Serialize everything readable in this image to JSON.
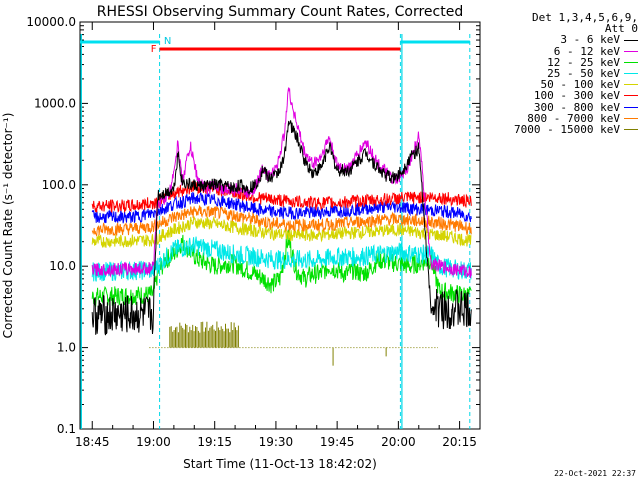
{
  "chart_data": {
    "type": "line",
    "title": "RHESSI Observing Summary Count Rates, Corrected",
    "xlabel": "Start Time (11-Oct-13 18:42:02)",
    "ylabel": "Corrected Count Rate (s⁻¹ detector⁻¹)",
    "yscale": "log",
    "ylim": [
      0.1,
      10000
    ],
    "xlim_minutes": [
      -3,
      95
    ],
    "x_ticks": [
      "18:45",
      "19:00",
      "19:15",
      "19:30",
      "19:45",
      "20:00",
      "20:15"
    ],
    "y_ticks": [
      "0.1",
      "1.0",
      "10.0",
      "100.0",
      "1000.0",
      "10000.0"
    ],
    "legend": {
      "header": [
        "Det 1,3,4,5,6,9,",
        "Att 0"
      ],
      "entries": [
        {
          "name": "3 - 6 keV",
          "color": "#000000"
        },
        {
          "name": "6 - 12 keV",
          "color": "#e000e0"
        },
        {
          "name": "12 - 25 keV",
          "color": "#00e000"
        },
        {
          "name": "25 - 50 keV",
          "color": "#00e8e8"
        },
        {
          "name": "50 - 100 keV",
          "color": "#d4d400"
        },
        {
          "name": "100 - 300 keV",
          "color": "#ff0000"
        },
        {
          "name": "300 - 800 keV",
          "color": "#0000ff"
        },
        {
          "name": "800 - 7000 keV",
          "color": "#ff7a00"
        },
        {
          "name": "7000 - 15000 keV",
          "color": "#808000"
        }
      ]
    },
    "series": [
      {
        "name": "3 - 6 keV",
        "color": "#000000",
        "x": [
          0,
          15,
          16,
          18,
          20,
          21,
          22,
          24,
          27,
          30,
          31,
          33,
          35,
          36,
          38,
          40,
          42,
          43,
          45,
          47,
          48,
          50,
          52,
          54,
          56,
          58,
          60,
          63,
          67,
          70,
          72,
          74,
          76,
          78,
          80,
          83,
          85,
          90,
          93
        ],
        "y": [
          2.5,
          2.5,
          75,
          80,
          90,
          250,
          110,
          100,
          95,
          100,
          100,
          95,
          90,
          100,
          90,
          100,
          160,
          120,
          130,
          200,
          600,
          400,
          200,
          140,
          160,
          300,
          150,
          150,
          250,
          160,
          130,
          120,
          150,
          220,
          280,
          3,
          3,
          3,
          2.6
        ]
      },
      {
        "name": "6 - 12 keV",
        "color": "#e000e0",
        "x": [
          0,
          15,
          16,
          17,
          18,
          19,
          21,
          22,
          24,
          26,
          28,
          30,
          32,
          34,
          36,
          38,
          40,
          42,
          43,
          45,
          47,
          48,
          50,
          52,
          54,
          56,
          58,
          60,
          63,
          67,
          70,
          72,
          74,
          76,
          78,
          80,
          83,
          85,
          90,
          93
        ],
        "y": [
          9,
          9.5,
          60,
          65,
          70,
          80,
          320,
          110,
          300,
          110,
          90,
          100,
          90,
          85,
          90,
          80,
          95,
          170,
          130,
          150,
          400,
          1500,
          600,
          250,
          180,
          220,
          380,
          170,
          160,
          340,
          180,
          140,
          110,
          130,
          200,
          400,
          11,
          10,
          9,
          8.5
        ]
      },
      {
        "name": "12 - 25 keV",
        "color": "#00e000",
        "x": [
          0,
          15,
          16,
          18,
          20,
          22,
          24,
          26,
          28,
          30,
          32,
          34,
          36,
          38,
          40,
          42,
          44,
          46,
          48,
          50,
          52,
          54,
          56,
          58,
          60,
          62,
          64,
          66,
          68,
          70,
          74,
          78,
          80,
          83,
          85,
          90,
          93
        ],
        "y": [
          4.2,
          4.5,
          8,
          12,
          14,
          20,
          15,
          12,
          11,
          10,
          10.5,
          11,
          10,
          9,
          8,
          7,
          6,
          7,
          22,
          9,
          7,
          8,
          8,
          10,
          9,
          8,
          9,
          8,
          9,
          12,
          11,
          10,
          11,
          12,
          5,
          4.5,
          4.3
        ]
      },
      {
        "name": "25 - 50 keV",
        "color": "#00e8e8",
        "x": [
          0,
          15,
          20,
          25,
          30,
          35,
          40,
          45,
          50,
          55,
          60,
          65,
          70,
          75,
          80,
          83,
          85,
          90,
          93
        ],
        "y": [
          8.5,
          9,
          16,
          18,
          16,
          14,
          13,
          12,
          12,
          12,
          13,
          13,
          14,
          15,
          14,
          14,
          10,
          9,
          8.8
        ]
      },
      {
        "name": "50 - 100 keV",
        "color": "#d4d400",
        "x": [
          0,
          15,
          20,
          25,
          30,
          35,
          40,
          45,
          50,
          55,
          60,
          65,
          70,
          75,
          80,
          85,
          90,
          93
        ],
        "y": [
          20,
          21,
          28,
          35,
          33,
          30,
          27,
          25,
          24,
          24,
          25,
          26,
          27,
          28,
          26,
          24,
          22,
          20
        ]
      },
      {
        "name": "100 - 300 keV",
        "color": "#ff0000",
        "x": [
          0,
          10,
          15,
          20,
          25,
          30,
          35,
          40,
          45,
          50,
          55,
          60,
          65,
          70,
          75,
          80,
          85,
          90,
          93
        ],
        "y": [
          55,
          55,
          60,
          80,
          95,
          90,
          80,
          70,
          65,
          62,
          60,
          60,
          63,
          65,
          68,
          70,
          70,
          65,
          60
        ]
      },
      {
        "name": "300 - 800 keV",
        "color": "#0000ff",
        "x": [
          0,
          10,
          15,
          20,
          25,
          30,
          35,
          40,
          45,
          50,
          55,
          60,
          65,
          70,
          75,
          80,
          85,
          90,
          93
        ],
        "y": [
          40,
          40,
          45,
          58,
          68,
          65,
          58,
          50,
          46,
          45,
          46,
          48,
          50,
          53,
          54,
          50,
          48,
          44,
          40
        ]
      },
      {
        "name": "800 - 7000 keV",
        "color": "#ff7a00",
        "x": [
          0,
          10,
          15,
          20,
          25,
          30,
          35,
          40,
          45,
          50,
          55,
          60,
          65,
          70,
          75,
          80,
          85,
          90,
          93
        ],
        "y": [
          28,
          29,
          31,
          40,
          47,
          46,
          42,
          37,
          33,
          32,
          32,
          33,
          35,
          37,
          38,
          36,
          34,
          31,
          29
        ]
      },
      {
        "name": "7000 - 15000 keV",
        "color": "#808000",
        "x": [
          14,
          20,
          25,
          30,
          35,
          40,
          45,
          50,
          55,
          60,
          65,
          70,
          75,
          80,
          85
        ],
        "y": [
          1.0,
          1.0,
          1.0,
          1.0,
          1.0,
          1.0,
          1.0,
          1.0,
          1.0,
          1.0,
          1.0,
          1.0,
          1.0,
          1.0,
          1.0
        ]
      }
    ],
    "flags": {
      "attenuator_cyan_segments": [
        [
          -3,
          16.5
        ],
        [
          75.5,
          92.5
        ]
      ],
      "flare_red_segment": [
        16.5,
        75.5
      ],
      "flare_label": "F",
      "night_label": "N",
      "dashed_marks": [
        16.5,
        75.5,
        92.5
      ]
    },
    "grid": false
  },
  "footer": {
    "timestamp": "22-Oct-2021 22:37"
  }
}
